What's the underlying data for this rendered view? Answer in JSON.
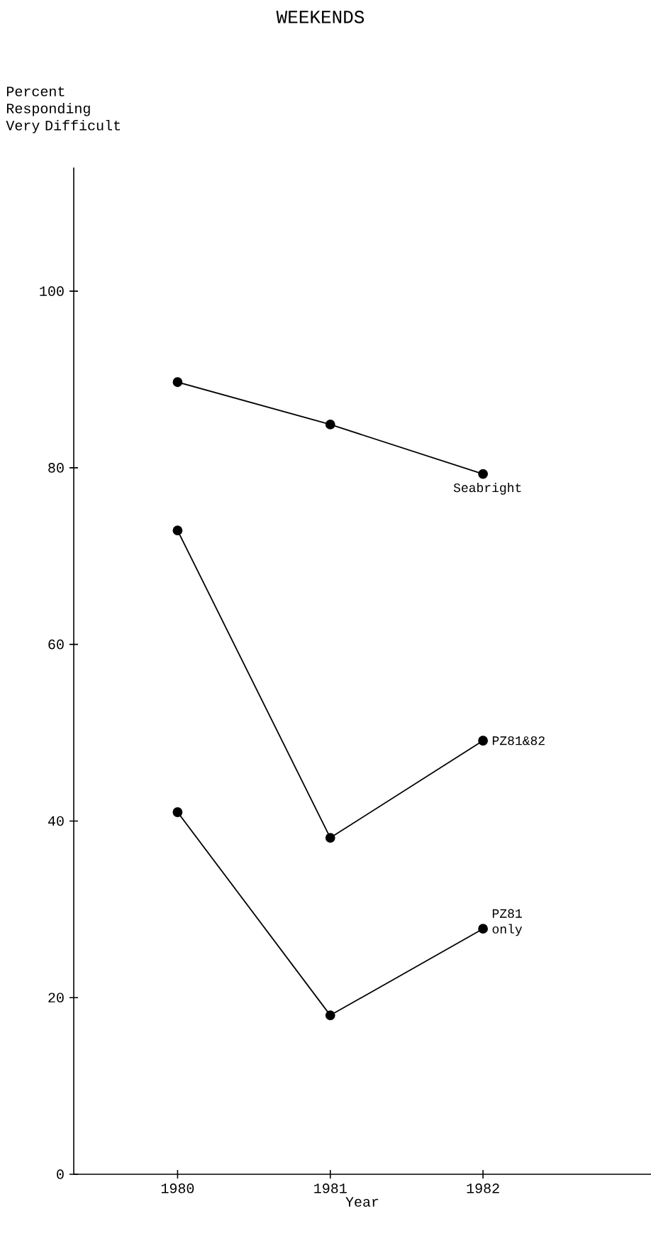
{
  "chart_data": {
    "type": "line",
    "title": "WEEKENDS",
    "ylabel": "Percent Responding Very Difficult",
    "xlabel": "Year",
    "x": [
      1980,
      1981,
      1982
    ],
    "xlim": [
      1979.32,
      1983.1
    ],
    "xticks": [
      1980,
      1981,
      1982
    ],
    "ylim": [
      0,
      114
    ],
    "yticks": [
      0,
      20,
      40,
      60,
      80,
      100
    ],
    "marker": "circle",
    "line_style": "solid",
    "series": [
      {
        "name": "Seabright",
        "color": "#000000",
        "values": [
          89.7,
          84.9,
          79.3
        ]
      },
      {
        "name": "PZ81&82",
        "color": "#000000",
        "values": [
          72.9,
          38.1,
          49.1
        ]
      },
      {
        "name": "PZ81 only",
        "color": "#000000",
        "values": [
          41.0,
          18.0,
          27.8
        ]
      }
    ]
  }
}
